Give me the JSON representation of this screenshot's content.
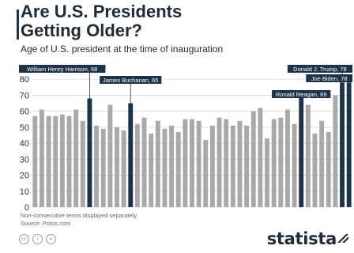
{
  "header": {
    "title_line1": "Are U.S. Presidents",
    "title_line2": "Getting Older?",
    "subtitle": "Age of U.S. president at the time of inauguration"
  },
  "footer": {
    "note": "Non-consecutive terms displayed separately",
    "source": "Source: Potus.com",
    "brand": "statista",
    "license_icons": [
      "cc-icon",
      "by-icon",
      "nd-icon"
    ]
  },
  "colors": {
    "bar": "#a9a9a9",
    "highlight": "#1e3348",
    "label_bg": "#1e3348",
    "label_text": "#ffffff",
    "grid": "#d6d6d6"
  },
  "chart_data": {
    "type": "bar",
    "ylim": [
      0,
      90
    ],
    "yticks": [
      0,
      10,
      20,
      30,
      40,
      50,
      60,
      70,
      80
    ],
    "grid": true,
    "values": [
      57,
      61,
      57,
      57,
      58,
      57,
      61,
      54,
      68,
      51,
      49,
      64,
      50,
      48,
      65,
      52,
      56,
      46,
      54,
      49,
      51,
      47,
      55,
      55,
      54,
      42,
      51,
      56,
      55,
      51,
      54,
      51,
      60,
      62,
      43,
      55,
      56,
      61,
      52,
      69,
      64,
      46,
      54,
      47,
      70,
      78,
      78
    ],
    "highlights": [
      {
        "index": 8,
        "label": "William Henry Harrison, 68"
      },
      {
        "index": 14,
        "label": "James Buchanan, 65"
      },
      {
        "index": 39,
        "label": "Ronald Reagan, 69"
      },
      {
        "index": 45,
        "label": "Donald J. Trump, 78"
      },
      {
        "index": 46,
        "label": "Joe Biden, 78"
      }
    ]
  }
}
